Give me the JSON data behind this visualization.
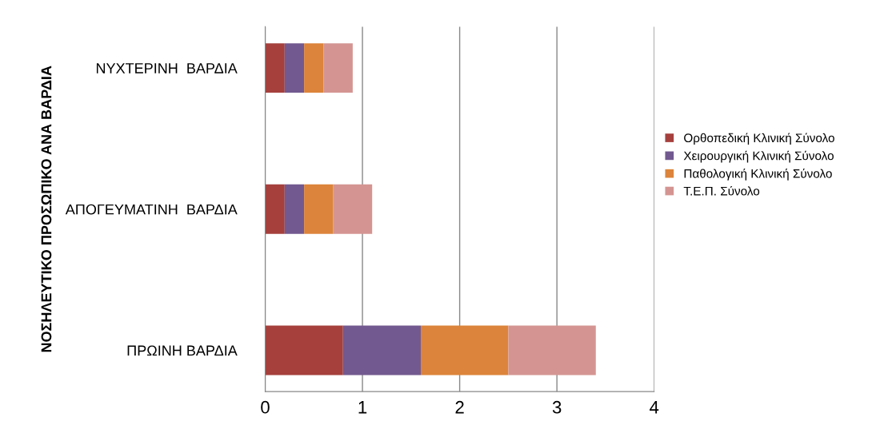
{
  "chart_data": {
    "type": "bar",
    "orientation": "horizontal",
    "stacked": true,
    "ylabel": "ΝΟΣΗΛΕΥΤΙΚΟ ΠΡΟΣΩΠΙΚΟ ΑΝΑ ΒΑΡΔΙΑ",
    "categories": [
      "ΝΥΧΤΕΡΙΝΗ  ΒΑΡΔΙΑ",
      "ΑΠΟΓΕΥΜΑΤΙΝΗ  ΒΑΡΔΙΑ",
      "ΠΡΩΙΝΗ ΒΑΡΔΙΑ"
    ],
    "series": [
      {
        "name": "Ορθοπεδική Κλινική Σύνολο",
        "color": "#a5403d",
        "values": [
          0.2,
          0.2,
          0.8
        ]
      },
      {
        "name": "Χειρουργική Κλινική Σύνολο",
        "color": "#72598f",
        "values": [
          0.2,
          0.2,
          0.8
        ]
      },
      {
        "name": "Παθολογική Κλινική Σύνολο",
        "color": "#dc843b",
        "values": [
          0.2,
          0.3,
          0.9
        ]
      },
      {
        "name": "Τ.Ε.Π. Σύνολο",
        "color": "#d49592",
        "values": [
          0.3,
          0.4,
          0.9
        ]
      }
    ],
    "xlim": [
      0,
      4
    ],
    "xticks": [
      0,
      1,
      2,
      3,
      4
    ],
    "grid": "x",
    "legend": "right"
  }
}
